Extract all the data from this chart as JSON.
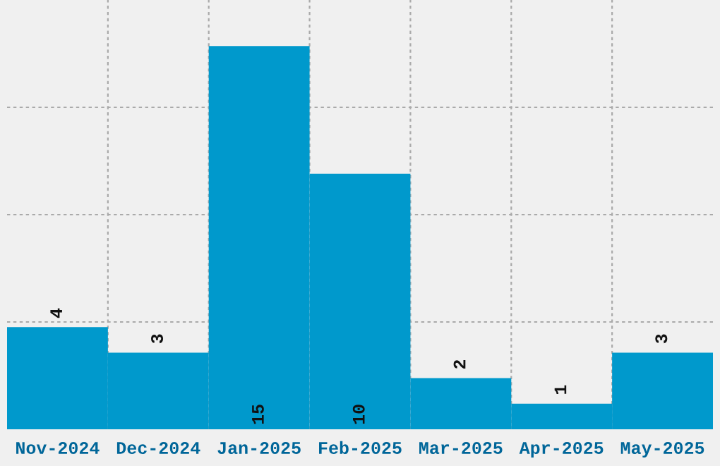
{
  "chart_data": {
    "type": "bar",
    "categories": [
      "Nov-2024",
      "Dec-2024",
      "Jan-2025",
      "Feb-2025",
      "Mar-2025",
      "Apr-2025",
      "May-2025"
    ],
    "values": [
      4,
      3,
      15,
      10,
      2,
      1,
      3
    ],
    "color": "#0099cc",
    "ylim": [
      0,
      16.8
    ],
    "yticks": [
      {
        "value": 4.2,
        "label": null
      },
      {
        "value": 8.4,
        "label": null
      },
      {
        "value": 12.6,
        "label": null
      }
    ],
    "tick_labels": "x",
    "grid": true,
    "data_labels": true
  }
}
